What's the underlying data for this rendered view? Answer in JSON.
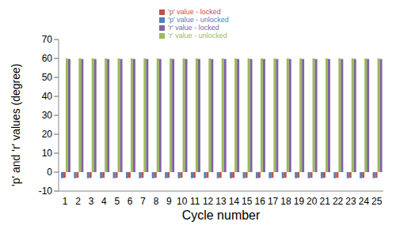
{
  "chart_data": {
    "type": "bar",
    "x_label": "Cycle number",
    "y_label": "'p' and 'r' values (degree)",
    "categories": [
      1,
      2,
      3,
      4,
      5,
      6,
      7,
      8,
      9,
      10,
      11,
      12,
      13,
      14,
      15,
      16,
      17,
      18,
      19,
      20,
      21,
      22,
      23,
      24,
      25
    ],
    "series": [
      {
        "name": "'p' value - unlocked",
        "color": "#4f81bd",
        "values": [
          -3.2,
          -3.2,
          -3.2,
          -3.2,
          -3.2,
          -3.2,
          -3.2,
          -3.2,
          -3.2,
          -3.2,
          -3.2,
          -3.2,
          -3.2,
          -3.2,
          -3.2,
          -3.2,
          -3.2,
          -3.2,
          -3.2,
          -3.2,
          -3.2,
          -3.2,
          -3.2,
          -3.2,
          -3.2
        ]
      },
      {
        "name": "'p' value - locked",
        "color": "#c0504d",
        "values": [
          -3,
          -3,
          -3,
          -3,
          -3,
          -3,
          -3,
          -3,
          -3,
          -3,
          -3,
          -3,
          -3,
          -3,
          -3,
          -3,
          -3,
          -3,
          -3,
          -3,
          -3,
          -3,
          -3,
          -3,
          -3
        ]
      },
      {
        "name": "'r' value - unlocked",
        "color": "#9bbb59",
        "values": [
          60,
          60,
          60,
          60,
          60,
          60,
          60,
          60,
          60,
          60,
          60,
          60,
          60,
          60,
          60,
          60,
          60,
          60,
          60,
          60,
          60,
          60,
          60,
          60,
          60
        ]
      },
      {
        "name": "'r' value - locked",
        "color": "#8064a2",
        "values": [
          59.7,
          59.7,
          59.7,
          59.7,
          59.7,
          59.7,
          59.7,
          59.7,
          59.7,
          59.7,
          59.7,
          59.7,
          59.7,
          59.7,
          59.7,
          59.7,
          59.7,
          59.7,
          59.7,
          59.7,
          59.7,
          59.7,
          59.7,
          59.7,
          59.7
        ]
      }
    ],
    "ylim": [
      -10,
      70
    ],
    "yticks": [
      -10,
      0,
      10,
      20,
      30,
      40,
      50,
      60,
      70
    ],
    "grid": false,
    "legend": "top"
  }
}
